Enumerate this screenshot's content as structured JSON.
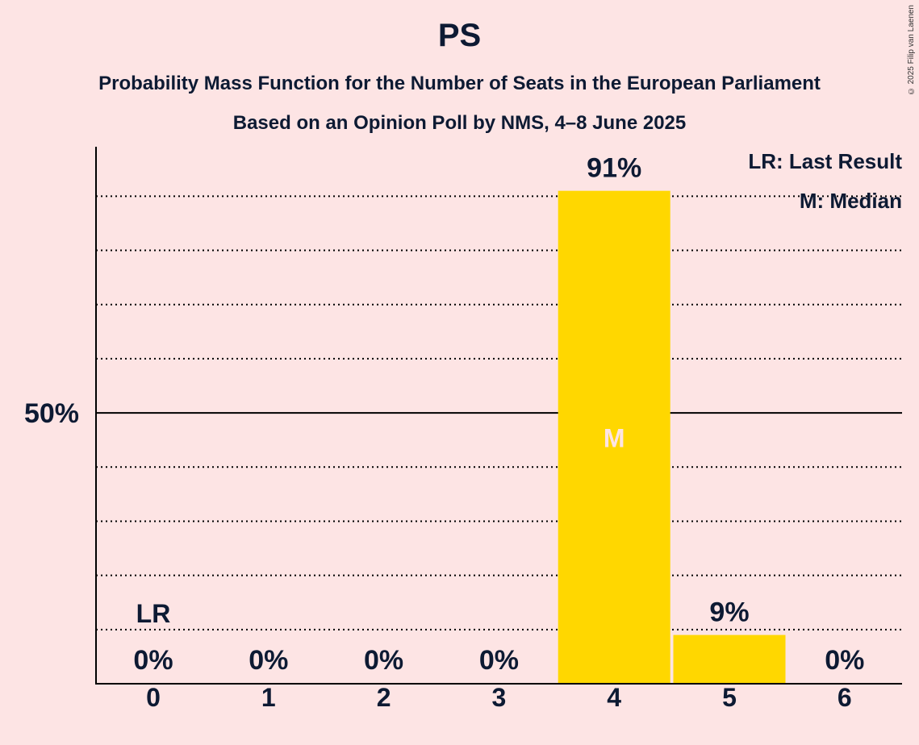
{
  "chart_data": {
    "type": "bar",
    "title": "PS",
    "subtitle": "Probability Mass Function for the Number of Seats in the European Parliament",
    "subtitle2": "Based on an Opinion Poll by NMS, 4–8 June 2025",
    "categories": [
      "0",
      "1",
      "2",
      "3",
      "4",
      "5",
      "6"
    ],
    "values": [
      0,
      0,
      0,
      0,
      91,
      9,
      0
    ],
    "value_labels": [
      "0%",
      "0%",
      "0%",
      "0%",
      "91%",
      "9%",
      "0%"
    ],
    "ylim": [
      0,
      100
    ],
    "ytick_label": "50%",
    "last_result_category": "0",
    "last_result_marker": "LR",
    "median_category": "4",
    "median_marker": "M",
    "legend": {
      "placement": "top-right",
      "entries": [
        "LR: Last Result",
        "M: Median"
      ]
    },
    "colors": {
      "bar": "#ffd700",
      "background": "#fde4e4",
      "text": "#0d1a33"
    }
  },
  "copyright": "© 2025 Filip van Laenen"
}
